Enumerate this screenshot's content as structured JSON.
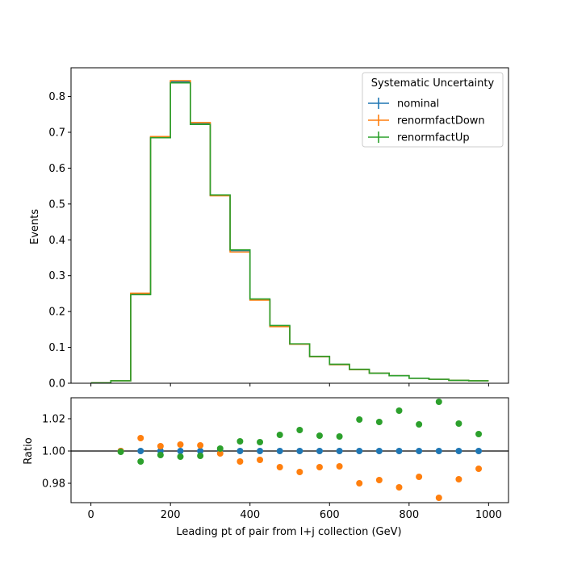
{
  "chart_data": [
    {
      "type": "line",
      "drawstyle": "steps",
      "ylabel": "Events",
      "xlim": [
        -50,
        1050
      ],
      "ylim": [
        0,
        0.88
      ],
      "yticks": [
        "0.0",
        "0.1",
        "0.2",
        "0.3",
        "0.4",
        "0.5",
        "0.6",
        "0.7",
        "0.8"
      ],
      "bin_edges": [
        0,
        50,
        100,
        150,
        200,
        250,
        300,
        350,
        400,
        450,
        500,
        550,
        600,
        650,
        700,
        750,
        800,
        850,
        900,
        950,
        1000
      ],
      "legend": {
        "title": "Systematic Uncertainty",
        "placement": "upper right"
      },
      "series": [
        {
          "name": "nominal",
          "color": "#1f77b4",
          "values": [
            0.001,
            0.007,
            0.249,
            0.686,
            0.841,
            0.724,
            0.524,
            0.37,
            0.233,
            0.159,
            0.109,
            0.074,
            0.052,
            0.038,
            0.028,
            0.021,
            0.014,
            0.011,
            0.008,
            0.007
          ]
        },
        {
          "name": "renormfactDown",
          "color": "#ff7f0e",
          "values": [
            0.001,
            0.007,
            0.251,
            0.688,
            0.844,
            0.727,
            0.523,
            0.366,
            0.232,
            0.158,
            0.109,
            0.074,
            0.052,
            0.038,
            0.028,
            0.021,
            0.014,
            0.011,
            0.008,
            0.007
          ]
        },
        {
          "name": "renormfactUp",
          "color": "#2ca02c",
          "values": [
            0.001,
            0.007,
            0.247,
            0.685,
            0.838,
            0.722,
            0.525,
            0.372,
            0.235,
            0.161,
            0.11,
            0.075,
            0.053,
            0.039,
            0.028,
            0.021,
            0.014,
            0.011,
            0.008,
            0.007
          ]
        }
      ]
    },
    {
      "type": "scatter",
      "xlabel": "Leading pt of pair from l+j collection (GeV)",
      "ylabel": "Ratio",
      "xlim": [
        -50,
        1050
      ],
      "ylim": [
        0.968,
        1.033
      ],
      "xticks": [
        "0",
        "200",
        "400",
        "600",
        "800",
        "1000"
      ],
      "yticks": [
        "0.98",
        "1.00",
        "1.02"
      ],
      "reference_line": 1.0,
      "x": [
        75,
        125,
        175,
        225,
        275,
        325,
        375,
        425,
        475,
        525,
        575,
        625,
        675,
        725,
        775,
        825,
        875,
        925,
        975
      ],
      "series": [
        {
          "name": "nominal",
          "color": "#1f77b4",
          "values": [
            1.0,
            1.0,
            1.0,
            1.0,
            1.0,
            1.0,
            1.0,
            1.0,
            1.0,
            1.0,
            1.0,
            1.0,
            1.0,
            1.0,
            1.0,
            1.0,
            1.0,
            1.0,
            1.0
          ]
        },
        {
          "name": "renormfactDown",
          "color": "#ff7f0e",
          "values": [
            1.0,
            1.008,
            1.003,
            1.004,
            1.0035,
            0.9985,
            0.9935,
            0.9945,
            0.99,
            0.987,
            0.99,
            0.9905,
            0.98,
            0.982,
            0.9775,
            0.984,
            0.971,
            0.9825,
            0.989
          ]
        },
        {
          "name": "renormfactUp",
          "color": "#2ca02c",
          "values": [
            0.9995,
            0.9935,
            0.9975,
            0.9965,
            0.997,
            1.0015,
            1.006,
            1.0055,
            1.01,
            1.013,
            1.0095,
            1.009,
            1.0195,
            1.018,
            1.025,
            1.0165,
            1.0305,
            1.017,
            1.0105
          ]
        }
      ]
    }
  ]
}
